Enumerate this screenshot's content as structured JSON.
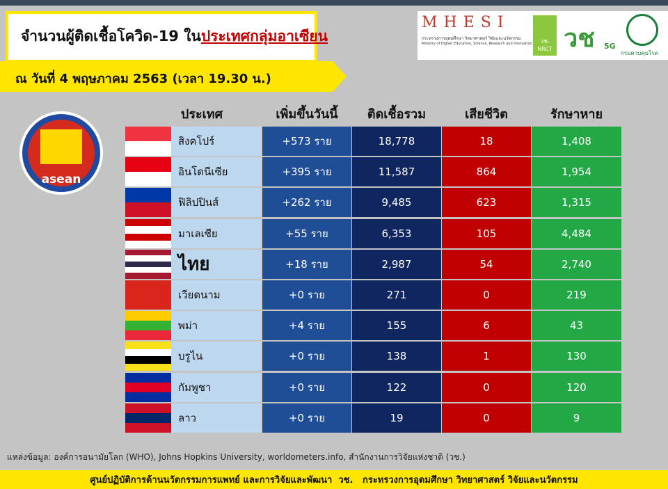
{
  "header": {
    "title_prefix": "จำนวนผู้ติดเชื้อโควิด-19 ใน",
    "title_highlight": "ประเทศกลุ่มอาเซียน",
    "date": "ณ วันที่ 4 พฤษภาคม 2563 (เวลา 19.30 น.)"
  },
  "logos": {
    "mhesi": "MHESI",
    "mhesi_th": "กระทรวงการอุดมศึกษา วิทยาศาสตร์ วิจัยและนวัตกรรม",
    "mhesi_en": "Ministry of Higher Education, Science, Research and Innovation",
    "nrct_th": "วช.",
    "nrct": "NRCT",
    "fiveg": "5G",
    "ddc": "กรมควบคุมโรค",
    "asean": "asean"
  },
  "table": {
    "columns": [
      "ประเทศ",
      "เพิ่มขึ้นวันนี้",
      "ติดเชื้อรวม",
      "เสียชีวิต",
      "รักษาหาย"
    ],
    "rows": [
      [
        "สิงคโปร์",
        "+573 ราย",
        "18,778",
        "18",
        "1,408"
      ],
      [
        "อินโดนีเซีย",
        "+395 ราย",
        "11,587",
        "864",
        "1,954"
      ],
      [
        "ฟิลิปปินส์",
        "+262 ราย",
        "9,485",
        "623",
        "1,315"
      ],
      [
        "มาเลเซีย",
        "+55 ราย",
        "6,353",
        "105",
        "4,484"
      ],
      [
        "ไทย",
        "+18 ราย",
        "2,987",
        "54",
        "2,740"
      ],
      [
        "เวียดนาม",
        "+0 ราย",
        "271",
        "0",
        "219"
      ],
      [
        "พม่า",
        "+4 ราย",
        "155",
        "6",
        "43"
      ],
      [
        "บรูไน",
        "+0 ราย",
        "138",
        "1",
        "130"
      ],
      [
        "กัมพูชา",
        "+0 ราย",
        "122",
        "0",
        "120"
      ],
      [
        "ลาว",
        "+0 ราย",
        "19",
        "0",
        "9"
      ]
    ]
  },
  "footer": {
    "source": "แหล่งข้อมูล: องค์การอนามัยโลก (WHO), Johns Hopkins University, worldometers.info, สำนักงานการวิจัยแห่งชาติ (วช.)",
    "credit": "ศูนย์ปฏิบัติการด้านนวัตกรรมการแพทย์ และการวิจัยและพัฒนา  วช.   กระทรวงการอุดมศึกษา วิทยาศาสตร์ วิจัยและนวัตกรรม"
  }
}
